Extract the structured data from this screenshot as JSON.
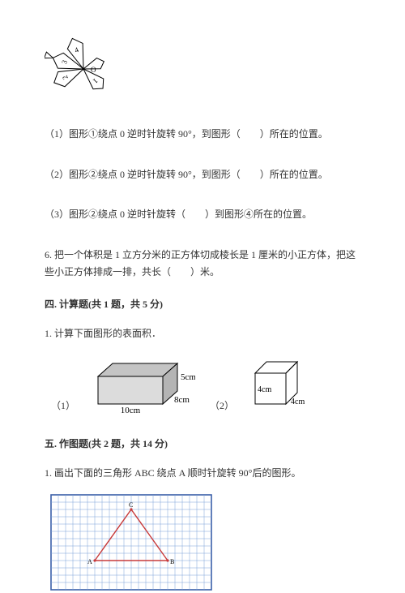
{
  "fan": {
    "center_label": "O",
    "blade_labels": [
      "1",
      "2",
      "3",
      "4"
    ],
    "stroke": "#000000",
    "fill": "#ffffff",
    "label_font": 9
  },
  "q5_1": "（1）图形①绕点 0 逆时针旋转 90°，到图形（　　）所在的位置。",
  "q5_2": "（2）图形②绕点 0 逆时针旋转 90°，到图形（　　）所在的位置。",
  "q5_3": "（3）图形②绕点 0 逆时针旋转（　　）到图形④所在的位置。",
  "q6": "6. 把一个体积是 1 立方分米的正方体切成棱长是 1 厘米的小正方体，把这些小正方体排成一排，共长（　　）米。",
  "section4": "四. 计算题(共 1 题，共 5 分)",
  "s4_q1": "1. 计算下面图形的表面积．",
  "cuboid": {
    "label1": "（1）",
    "label2": "（2）",
    "len": "10cm",
    "wid": "8cm",
    "hei": "5cm",
    "cube_a": "4cm",
    "cube_b": "4cm",
    "stroke": "#000000",
    "fill_front": "#dcdcdc",
    "fill_top": "#c4c4c4",
    "fill_side": "#b4b4b4",
    "font": 10
  },
  "section5": "五. 作图题(共 2 题，共 14 分)",
  "s5_q1": "1. 画出下面的三角形 ABC 绕点 A 顺时针旋转 90°后的图形。",
  "grid": {
    "border": "#3a5fa8",
    "cell": "#7aa0d8",
    "cols": 22,
    "rows": 13,
    "cell_size": 9,
    "tri_stroke": "#c83a3a",
    "A": [
      6,
      9
    ],
    "B": [
      16,
      9
    ],
    "C": [
      11,
      2
    ],
    "labA": "A",
    "labB": "B",
    "labC": "C",
    "lab_font": 8
  }
}
